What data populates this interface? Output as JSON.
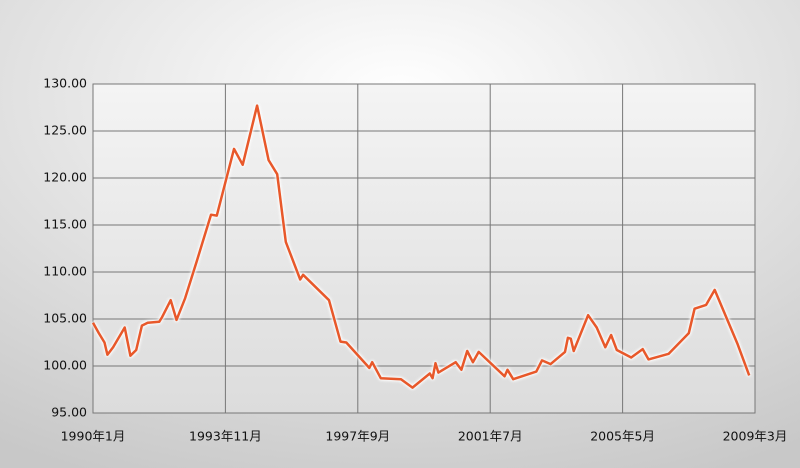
{
  "chart_data": {
    "type": "line",
    "x": [
      "1990-01",
      "1990-03",
      "1990-05",
      "1990-06",
      "1990-08",
      "1990-12",
      "1991-02",
      "1991-04",
      "1991-06",
      "1991-08",
      "1991-12",
      "1992-01",
      "1992-04",
      "1992-06",
      "1992-09",
      "1993-01",
      "1993-06",
      "1993-08",
      "1994-02",
      "1994-05",
      "1994-10",
      "1995-02",
      "1995-05",
      "1995-08",
      "1996-01",
      "1996-02",
      "1996-11",
      "1997-03",
      "1997-05",
      "1998-01",
      "1998-02",
      "1998-05",
      "1998-12",
      "1999-04",
      "1999-10",
      "1999-11",
      "1999-12",
      "2000-01",
      "2000-07",
      "2000-09",
      "2000-11",
      "2001-01",
      "2001-03",
      "2001-12",
      "2002-01",
      "2002-03",
      "2002-11",
      "2003-01",
      "2003-04",
      "2003-09",
      "2003-10",
      "2003-11",
      "2003-12",
      "2004-05",
      "2004-08",
      "2004-11",
      "2005-01",
      "2005-03",
      "2005-08",
      "2005-12",
      "2006-02",
      "2006-09",
      "2007-04",
      "2007-06",
      "2007-10",
      "2008-01",
      "2008-09",
      "2009-01"
    ],
    "series": [
      {
        "color": "#e8582a",
        "values": [
          104.6,
          103.5,
          102.5,
          101.2,
          102.0,
          104.1,
          101.1,
          101.7,
          104.3,
          104.6,
          104.7,
          105.2,
          107.0,
          104.9,
          107.2,
          111.1,
          116.1,
          116.0,
          123.1,
          121.4,
          127.7,
          121.9,
          120.4,
          113.2,
          109.2,
          109.7,
          107.0,
          102.6,
          102.5,
          99.8,
          100.4,
          98.7,
          98.6,
          97.7,
          99.2,
          98.7,
          100.3,
          99.3,
          100.4,
          99.6,
          101.6,
          100.4,
          101.5,
          98.9,
          99.6,
          98.6,
          99.4,
          100.6,
          100.2,
          101.5,
          103.0,
          102.9,
          101.6,
          105.4,
          104.1,
          102.0,
          103.3,
          101.7,
          100.9,
          101.8,
          100.7,
          101.3,
          103.5,
          106.1,
          106.5,
          108.1,
          102.3,
          99.0
        ]
      }
    ],
    "xlim": [
      "1990-01",
      "2009-03"
    ],
    "xticks": [
      {
        "value": "1990-01",
        "label": "1990年1月"
      },
      {
        "value": "1993-11",
        "label": "1993年11月"
      },
      {
        "value": "1997-09",
        "label": "1997年9月"
      },
      {
        "value": "2001-07",
        "label": "2001年7月"
      },
      {
        "value": "2005-05",
        "label": "2005年5月"
      },
      {
        "value": "2009-03",
        "label": "2009年3月"
      }
    ],
    "ylim": [
      95,
      130
    ],
    "yticks": [
      {
        "value": 95,
        "label": "95.00"
      },
      {
        "value": 100,
        "label": "100.00"
      },
      {
        "value": 105,
        "label": "105.00"
      },
      {
        "value": 110,
        "label": "110.00"
      },
      {
        "value": 115,
        "label": "115.00"
      },
      {
        "value": 120,
        "label": "120.00"
      },
      {
        "value": 125,
        "label": "125.00"
      },
      {
        "value": 130,
        "label": "130.00"
      }
    ],
    "grid": true
  }
}
